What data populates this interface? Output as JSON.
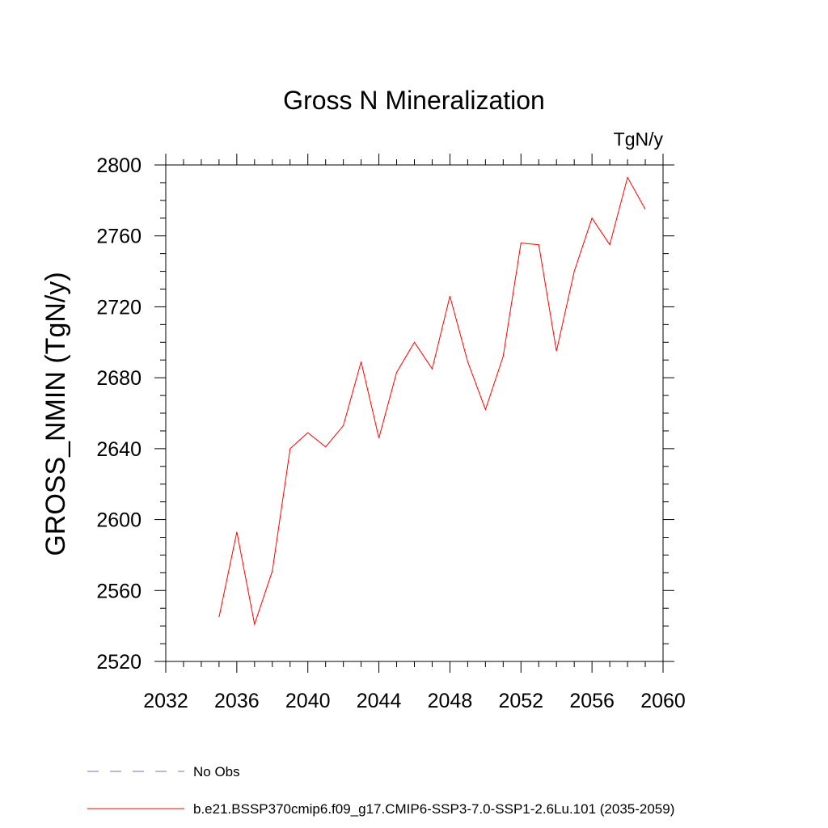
{
  "chart_data": {
    "type": "line",
    "title": "Gross N Mineralization",
    "units": "TgN/y",
    "ylabel": "GROSS_NMIN  (TgN/y)",
    "xlabel": "",
    "xlim": [
      2032,
      2060
    ],
    "ylim": [
      2520,
      2800
    ],
    "x_ticks": [
      2032,
      2036,
      2040,
      2044,
      2048,
      2052,
      2056,
      2060
    ],
    "y_ticks": [
      2520,
      2560,
      2600,
      2640,
      2680,
      2720,
      2760,
      2800
    ],
    "grid": false,
    "series": [
      {
        "name": "b.e21.BSSP370cmip6.f09_g17.CMIP6-SSP3-7.0-SSP1-2.6Lu.101 (2035-2059)",
        "color": "#ff0000",
        "x": [
          2035,
          2036,
          2037,
          2038,
          2039,
          2040,
          2041,
          2042,
          2043,
          2044,
          2045,
          2046,
          2047,
          2048,
          2049,
          2050,
          2051,
          2052,
          2053,
          2054,
          2055,
          2056,
          2057,
          2058,
          2059
        ],
        "values": [
          2545,
          2593,
          2541,
          2571,
          2640,
          2649,
          2641,
          2653,
          2689,
          2646,
          2683,
          2700,
          2685,
          2726,
          2689,
          2662,
          2692,
          2756,
          2755,
          2695,
          2740,
          2770,
          2755,
          2793,
          2775
        ]
      }
    ],
    "legend": [
      {
        "label": "No Obs",
        "style": "dashed",
        "color": "#7b6fb8"
      },
      {
        "label": "b.e21.BSSP370cmip6.f09_g17.CMIP6-SSP3-7.0-SSP1-2.6Lu.101 (2035-2059)",
        "style": "solid",
        "color": "#ff0000"
      }
    ]
  }
}
